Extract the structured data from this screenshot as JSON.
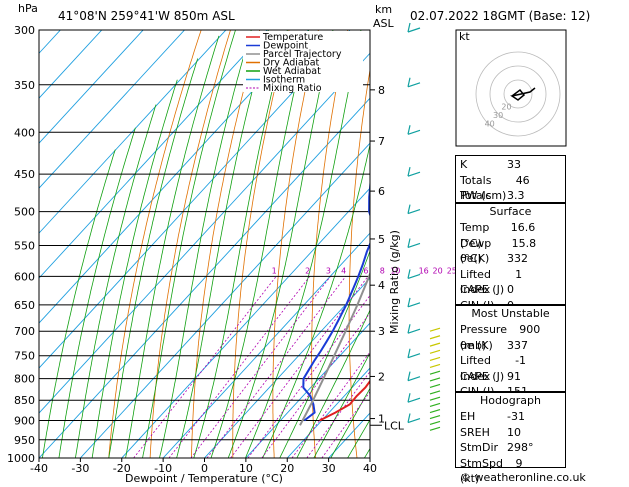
{
  "header": {
    "hpa_label": "hPa",
    "location": "41°08'N  259°41'W  850m  ASL",
    "km_label": "km",
    "asl_label": "ASL",
    "datetime": "02.07.2022  18GMT  (Base: 12)"
  },
  "footer": {
    "credit": "© weatheronline.co.uk"
  },
  "legend": [
    {
      "name": "Temperature",
      "color": "#e02020"
    },
    {
      "name": "Dewpoint",
      "color": "#1a3bd6"
    },
    {
      "name": "Parcel Trajectory",
      "color": "#909090"
    },
    {
      "name": "Dry Adiabat",
      "color": "#e07000"
    },
    {
      "name": "Wet Adiabat",
      "color": "#10a010"
    },
    {
      "name": "Isotherm",
      "color": "#20a0e0"
    },
    {
      "name": "Mixing Ratio",
      "color": "#b000b0"
    }
  ],
  "chart_data": {
    "type": "line",
    "xlabel": "Dewpoint / Temperature (°C)",
    "ylabel_right": "Mixing Ratio (g/kg)",
    "pressure_ticks": [
      300,
      350,
      400,
      450,
      500,
      550,
      600,
      650,
      700,
      750,
      800,
      850,
      900,
      950,
      1000
    ],
    "temp_ticks": [
      -40,
      -30,
      -20,
      -10,
      0,
      10,
      20,
      30,
      40
    ],
    "xlim": [
      -40,
      40
    ],
    "ylim": [
      1000,
      300
    ],
    "km_ticks": [
      {
        "km": "8",
        "p": 355
      },
      {
        "km": "7",
        "p": 410
      },
      {
        "km": "6",
        "p": 472
      },
      {
        "km": "5",
        "p": 540
      },
      {
        "km": "4",
        "p": 615
      },
      {
        "km": "3",
        "p": 700
      },
      {
        "km": "2",
        "p": 795
      },
      {
        "km": "1",
        "p": 895
      }
    ],
    "lcl": {
      "label": "LCL",
      "p": 912
    },
    "mixing_ratio_labels": [
      "1",
      "2",
      "3",
      "4",
      "6",
      "8",
      "10",
      "16",
      "20",
      "25"
    ],
    "series": [
      {
        "name": "Temperature",
        "p": [
          900,
          880,
          860,
          840,
          820,
          800,
          780,
          760,
          740,
          720,
          700,
          680,
          650,
          620,
          600,
          580,
          560,
          540,
          520,
          500,
          480,
          450,
          420,
          400,
          370,
          350,
          320,
          300
        ],
        "t": [
          19.5,
          21.5,
          23.2,
          23.0,
          23.2,
          22.8,
          22.0,
          20.8,
          19.5,
          18.0,
          16.7,
          15.2,
          13.0,
          10.6,
          9.0,
          7.2,
          5.4,
          3.6,
          1.6,
          -0.3,
          -2.6,
          -6.0,
          -9.8,
          -12.5,
          -16.8,
          -19.8,
          -24.8,
          -28.5
        ]
      },
      {
        "name": "Dewpoint",
        "p": [
          900,
          880,
          860,
          840,
          820,
          800,
          780,
          760,
          740,
          720,
          700,
          680,
          650,
          620,
          600,
          580,
          560,
          540,
          520,
          500,
          480,
          450,
          420,
          400,
          370,
          350,
          330,
          310,
          300
        ],
        "t": [
          15.8,
          16.5,
          14.4,
          11.8,
          8.2,
          6.3,
          5.6,
          4.9,
          4.3,
          3.6,
          2.8,
          1.8,
          0.2,
          -1.8,
          -3.2,
          -4.8,
          -6.6,
          -8.2,
          -10.8,
          -15.0,
          -18.2,
          -22.8,
          -27.5,
          -30.8,
          -36.0,
          -39.5,
          -43.5,
          -47.2,
          -49.0
        ]
      },
      {
        "name": "Parcel Trajectory",
        "p": [
          912,
          880,
          850,
          800,
          750,
          700,
          650,
          600,
          550,
          500,
          450,
          400,
          350,
          300
        ],
        "t": [
          15.8,
          14.6,
          13.4,
          11.1,
          8.6,
          5.9,
          2.9,
          -0.6,
          -4.6,
          -9.3,
          -15.0,
          -22.0,
          -30.3,
          -40.0
        ]
      }
    ]
  },
  "hodograph": {
    "label": "kt",
    "ring_labels": [
      "40",
      "30",
      "20"
    ]
  },
  "winds": {
    "pressures": [
      300,
      350,
      400,
      450,
      500,
      550,
      600,
      650,
      700,
      750,
      800,
      850,
      900
    ]
  },
  "indices": {
    "rows": [
      {
        "k": "K",
        "v": "33"
      },
      {
        "k": "Totals Totals",
        "v": "46"
      },
      {
        "k": "PW (cm)",
        "v": "3.3"
      }
    ]
  },
  "surface": {
    "title": "Surface",
    "rows": [
      {
        "k": "Temp (°C)",
        "v": "16.6"
      },
      {
        "k": "Dewp (°C)",
        "v": "15.8"
      },
      {
        "k": "θe(K)",
        "v": "332"
      },
      {
        "k": "Lifted Index",
        "v": "1"
      },
      {
        "k": "CAPE (J)",
        "v": "0"
      },
      {
        "k": "CIN (J)",
        "v": "0"
      }
    ]
  },
  "unstable": {
    "title": "Most Unstable",
    "rows": [
      {
        "k": "Pressure (mb)",
        "v": "900"
      },
      {
        "k": "θe (K)",
        "v": "337"
      },
      {
        "k": "Lifted Index",
        "v": "-1"
      },
      {
        "k": "CAPE (J)",
        "v": "91"
      },
      {
        "k": "CIN (J)",
        "v": "151"
      }
    ]
  },
  "hodo_table": {
    "title": "Hodograph",
    "rows": [
      {
        "k": "EH",
        "v": "-31"
      },
      {
        "k": "SREH",
        "v": "10"
      },
      {
        "k": "StmDir",
        "v": "298°"
      },
      {
        "k": "StmSpd (kt)",
        "v": "9"
      }
    ]
  }
}
